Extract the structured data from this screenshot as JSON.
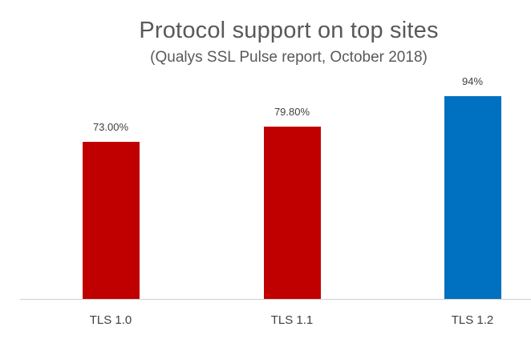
{
  "chart_data": {
    "type": "bar",
    "title": "Protocol support on top sites",
    "subtitle": "(Qualys SSL Pulse report, October 2018)",
    "xlabel": "",
    "ylabel": "",
    "categories": [
      "TLS 1.0",
      "TLS 1.1",
      "TLS 1.2"
    ],
    "values": [
      73.0,
      79.8,
      94
    ],
    "data_labels": [
      "73.00%",
      "79.80%",
      "94%"
    ],
    "colors": [
      "#C00000",
      "#C00000",
      "#0070C0"
    ],
    "ylim": [
      0,
      100
    ],
    "grid": false,
    "legend": "none"
  }
}
